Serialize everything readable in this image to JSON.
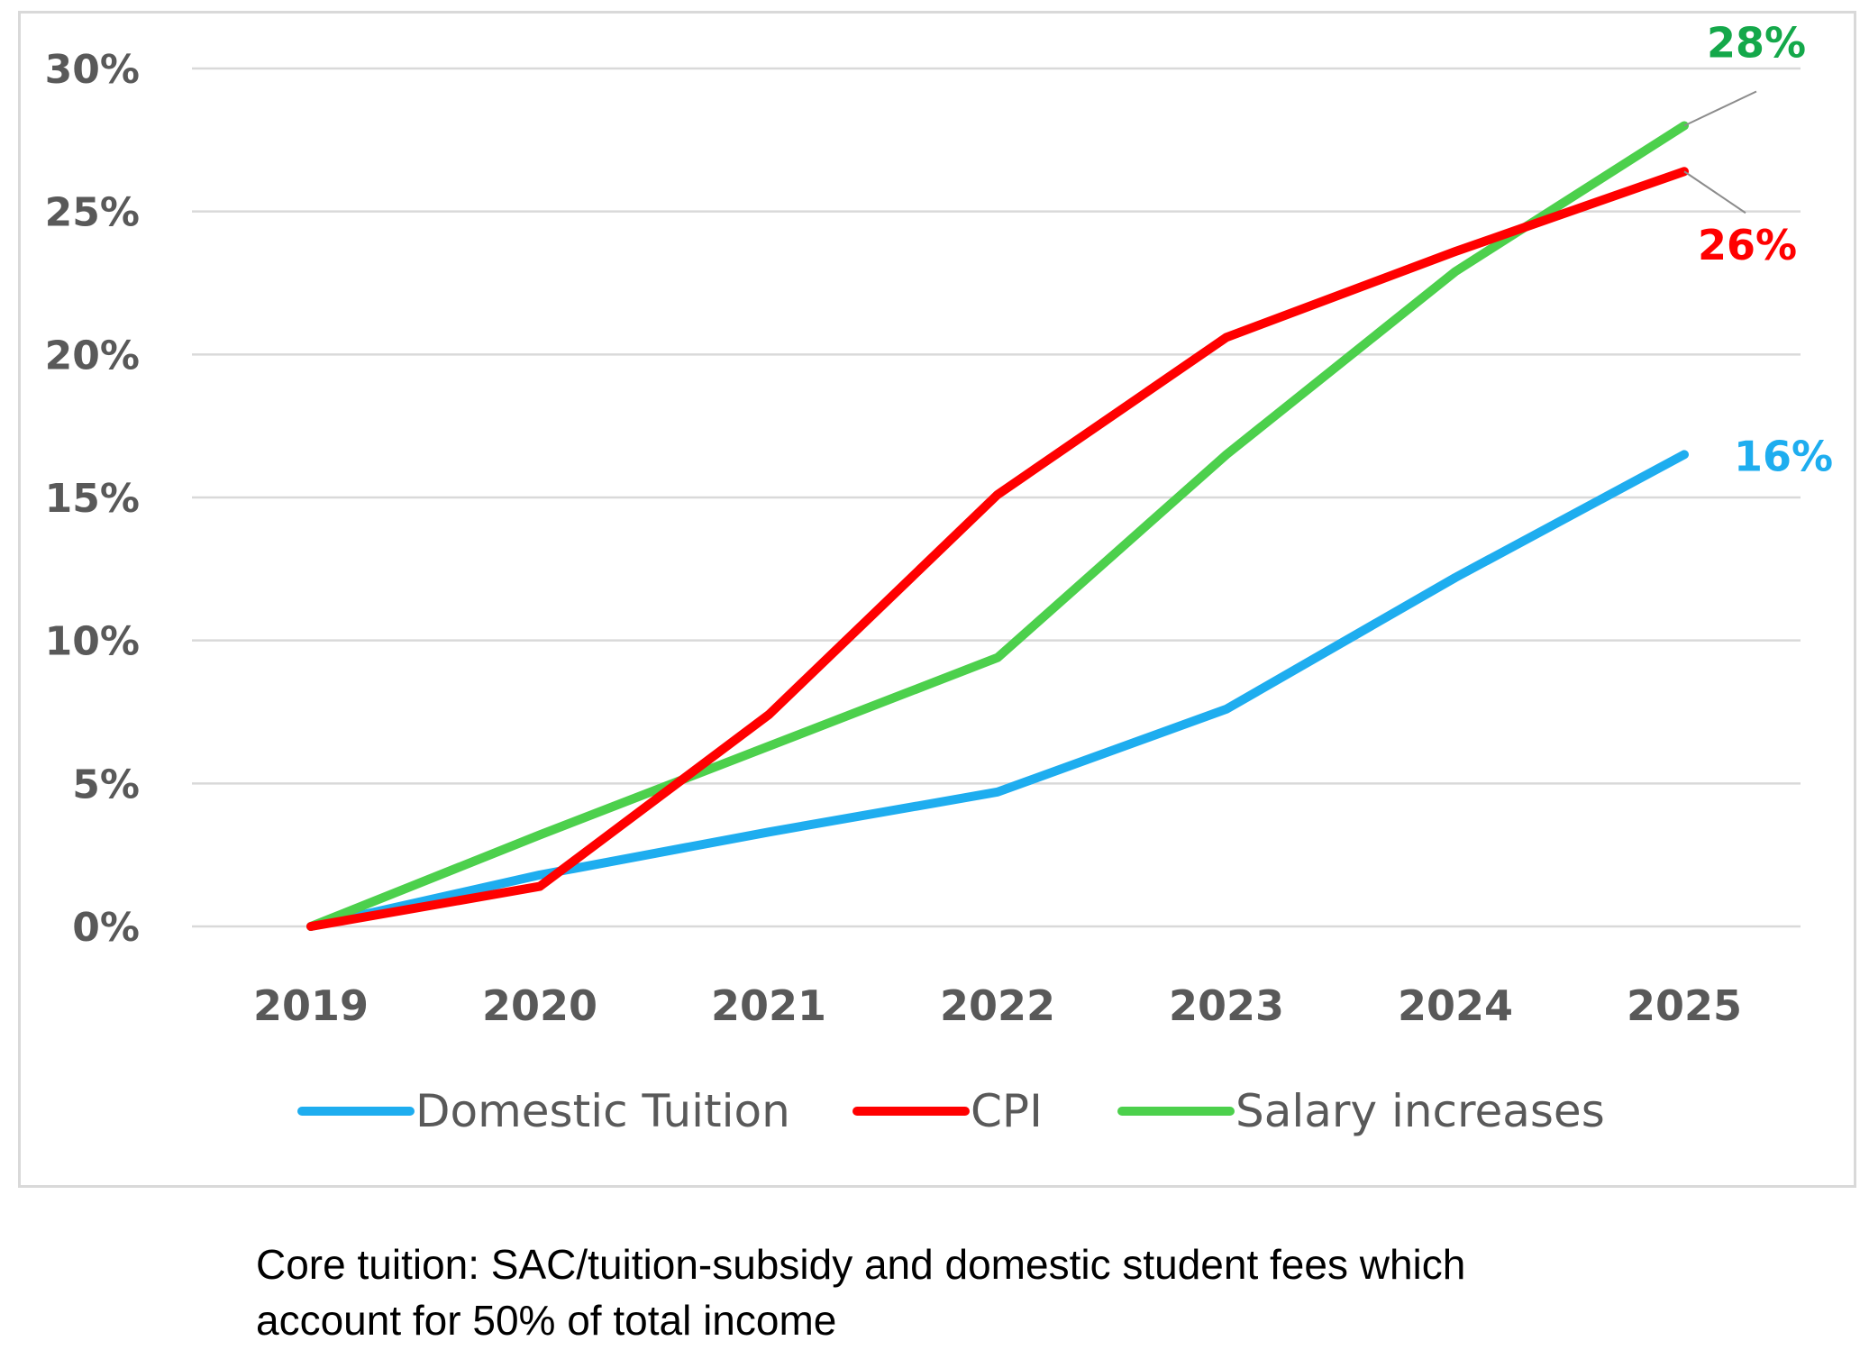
{
  "chart_data": {
    "type": "line",
    "categories": [
      "2019",
      "2020",
      "2021",
      "2022",
      "2023",
      "2024",
      "2025"
    ],
    "ylim": [
      0,
      30
    ],
    "y_ticks": [
      0,
      5,
      10,
      15,
      20,
      25,
      30
    ],
    "y_tick_format": "percent",
    "y_tick_labels": [
      "0%",
      "5%",
      "10%",
      "15%",
      "20%",
      "25%",
      "30%"
    ],
    "grid": "horizontal",
    "legend_position": "bottom",
    "series": [
      {
        "name": "Domestic Tuition",
        "color": "#1EADEF",
        "values": [
          0,
          1.8,
          3.3,
          4.7,
          7.6,
          12.2,
          16.5
        ],
        "end_label": "16%"
      },
      {
        "name": "CPI",
        "color": "#FF0000",
        "values": [
          0,
          1.4,
          7.4,
          15.1,
          20.6,
          23.6,
          26.4
        ],
        "end_label": "26%"
      },
      {
        "name": "Salary increases",
        "color": "#4CD04C",
        "label_color": "#14A84A",
        "values": [
          0,
          3.2,
          6.3,
          9.4,
          16.5,
          22.9,
          28.0
        ],
        "end_label": "28%"
      }
    ]
  },
  "caption": {
    "line1": "Core tuition: SAC/tuition-subsidy and domestic student fees which",
    "line2": "account for 50% of total income"
  }
}
